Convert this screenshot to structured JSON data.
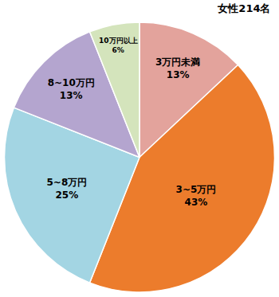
{
  "chart_data": {
    "type": "pie",
    "title": "女性214名",
    "categories": [
      "3万円未満",
      "3~5万円",
      "5~8万円",
      "8~10万円",
      "10万円以上"
    ],
    "values": [
      13,
      43,
      25,
      13,
      6
    ],
    "value_labels": [
      "13%",
      "43%",
      "25%",
      "13%",
      "6%"
    ],
    "colors": [
      "#e3a39c",
      "#ec7c2c",
      "#a3d5e3",
      "#b4a5cf",
      "#d4e4bc"
    ],
    "data_labels": true
  }
}
